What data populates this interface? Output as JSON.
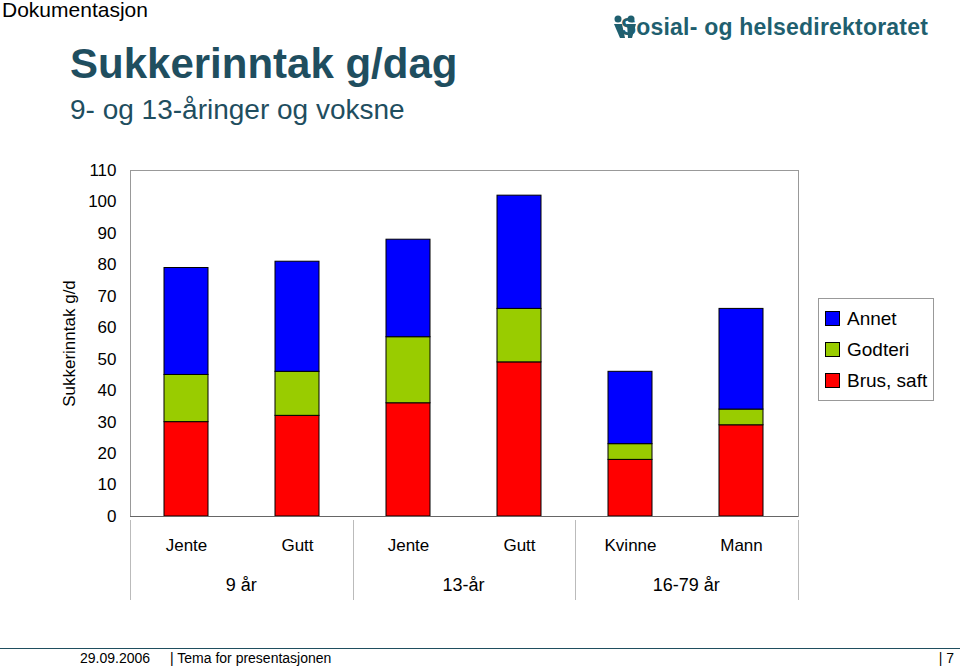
{
  "header": {
    "text": "Dokumentasjon",
    "organisation": "Sosial- og helsedirektoratet"
  },
  "chart_data": {
    "type": "bar",
    "stacked": true,
    "title": "Sukkerinntak g/dag",
    "subtitle": "9- og 13-åringer og voksne",
    "y_label": "Sukkerinntak g/d",
    "categories": [
      "Jente",
      "Gutt",
      "Jente",
      "Gutt",
      "Kvinne",
      "Mann"
    ],
    "groups": [
      {
        "label": "9 år",
        "count": 2
      },
      {
        "label": "13-år",
        "count": 2
      },
      {
        "label": "16-79 år",
        "count": 2
      }
    ],
    "series": [
      {
        "name": "Brus, saft",
        "color": "#ff0000",
        "values": [
          30,
          32,
          36,
          49,
          18,
          29
        ]
      },
      {
        "name": "Godteri",
        "color": "#99cc00",
        "values": [
          15,
          14,
          21,
          17,
          5,
          5
        ]
      },
      {
        "name": "Annet",
        "color": "#0000ff",
        "values": [
          34,
          35,
          31,
          36,
          23,
          32
        ]
      }
    ],
    "ylim": [
      0,
      110
    ],
    "yticks": [
      0,
      10,
      20,
      30,
      40,
      50,
      60,
      70,
      80,
      90,
      100,
      110
    ],
    "grid": false,
    "legend": "right"
  },
  "footer": {
    "date": "29.09.2006",
    "text": "| Tema for presentasjonen",
    "page": "| 7"
  }
}
